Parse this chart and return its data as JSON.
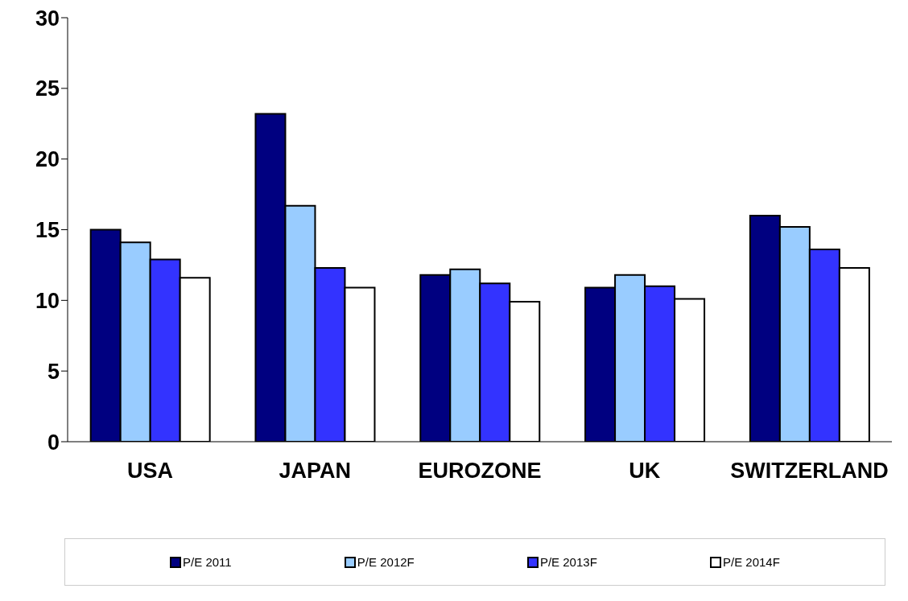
{
  "chart_data": {
    "type": "bar",
    "categories": [
      "USA",
      "JAPAN",
      "EUROZONE",
      "UK",
      "SWITZERLAND"
    ],
    "series": [
      {
        "name": "P/E 2011",
        "color": "#000080",
        "values": [
          15.0,
          23.2,
          11.8,
          10.9,
          16.0
        ]
      },
      {
        "name": "P/E 2012F",
        "color": "#99ccff",
        "values": [
          14.1,
          16.7,
          12.2,
          11.8,
          15.2
        ]
      },
      {
        "name": "P/E 2013F",
        "color": "#3333ff",
        "values": [
          12.9,
          12.3,
          11.2,
          11.0,
          13.6
        ]
      },
      {
        "name": "P/E 2014F",
        "color": "#ffffff",
        "values": [
          11.6,
          10.9,
          9.9,
          10.1,
          12.3
        ]
      }
    ],
    "ylim": [
      0,
      30
    ],
    "yticks": [
      0,
      5,
      10,
      15,
      20,
      25,
      30
    ],
    "grid": false,
    "legend": "bottom"
  }
}
